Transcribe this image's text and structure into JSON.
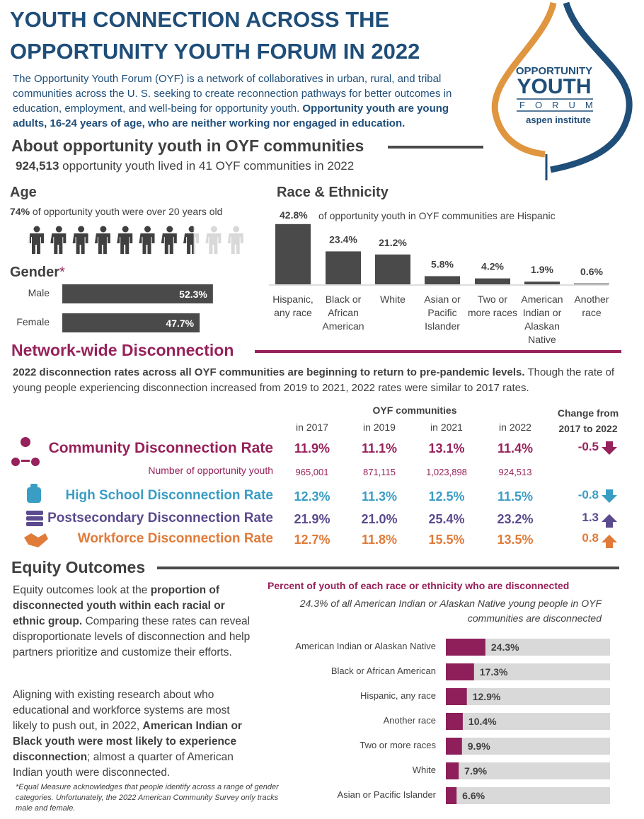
{
  "header": {
    "title_line1": "YOUTH CONNECTION ACROSS THE",
    "title_line2": "OPPORTUNITY YOUTH FORUM IN 2022",
    "intro": [
      {
        "text": "The Opportunity Youth Forum (OYF) is a network of collaboratives in urban, rural, and tribal communities across the U. S. seeking to create reconnection pathways for better outcomes in education, employment, and well-being for opportunity youth. ",
        "bold": false
      },
      {
        "text": "Opportunity youth are young adults, 16-24 years of age, who are neither working nor engaged in education.",
        "bold": true
      }
    ]
  },
  "logo": {
    "line1": "OPPORTUNITY",
    "line2": "YOUTH",
    "line3": "FORUM",
    "line4": "aspen institute"
  },
  "about": {
    "heading": "About opportunity youth in OYF communities",
    "parts": [
      {
        "text": "924,513",
        "bold": true
      },
      {
        "text": " opportunity youth lived in 41 OYF communities in 2022",
        "bold": false
      }
    ]
  },
  "age": {
    "heading": "Age",
    "parts": [
      {
        "text": "74%",
        "bold": true
      },
      {
        "text": " of opportunity youth were over 20 years old",
        "bold": false
      }
    ],
    "value": 74
  },
  "gender": {
    "heading": "Gender",
    "asterisk": "*",
    "categories": [
      "Male",
      "Female"
    ],
    "values": [
      52.3,
      47.7
    ],
    "value_labels": [
      "52.3%",
      "47.7%"
    ],
    "color": "#4a4a4a"
  },
  "race": {
    "heading": "Race & Ethnicity",
    "note": "of opportunity youth in OYF communities are Hispanic",
    "categories": [
      "Hispanic, any race",
      "Black or African American",
      "White",
      "Asian or Pacific Islander",
      "Two or more races",
      "American Indian or Alaskan Native",
      "Another race"
    ],
    "values": [
      42.8,
      23.4,
      21.2,
      5.8,
      4.2,
      1.9,
      0.6
    ],
    "value_labels": [
      "42.8%",
      "23.4%",
      "21.2%",
      "5.8%",
      "4.2%",
      "1.9%",
      "0.6%"
    ],
    "color": "#4a4a4a"
  },
  "network": {
    "heading": "Network-wide Disconnection",
    "lead": [
      {
        "text": "2022 disconnection rates across all OYF communities are beginning to return to pre-pandemic levels.",
        "bold": true
      },
      {
        "text": " Though the rate of young people experiencing disconnection increased from 2019 to 2021, 2022 rates were similar to 2017 rates.",
        "bold": false
      }
    ],
    "table": {
      "group_header": "OYF communities",
      "columns": [
        "in 2017",
        "in 2019",
        "in 2021",
        "in 2022"
      ],
      "change_header": "Change from 2017 to 2022",
      "rows": [
        {
          "label": "Community Disconnection Rate",
          "values": [
            "11.9%",
            "11.1%",
            "13.1%",
            "11.4%"
          ],
          "change": "-0.5",
          "color": "#97215a"
        },
        {
          "label": "Number of opportunity youth",
          "values": [
            "965,001",
            "871,115",
            "1,023,898",
            "924,513"
          ],
          "color": "#97215a"
        },
        {
          "label": "High School Disconnection Rate",
          "values": [
            "12.3%",
            "11.3%",
            "12.5%",
            "11.5%"
          ],
          "change": "-0.8",
          "color": "#3a9dc4"
        },
        {
          "label": "Postsecondary Disconnection Rate",
          "values": [
            "21.9%",
            "21.0%",
            "25.4%",
            "23.2%"
          ],
          "change": "1.3",
          "color": "#5b4a8e"
        },
        {
          "label": "Workforce Disconnection Rate",
          "values": [
            "12.7%",
            "11.8%",
            "15.5%",
            "13.5%"
          ],
          "change": "0.8",
          "color": "#e07b39"
        }
      ]
    }
  },
  "equity": {
    "heading": "Equity Outcomes",
    "para1": [
      {
        "text": "Equity outcomes look at the ",
        "bold": false
      },
      {
        "text": "proportion of disconnected youth within each racial or ethnic group.",
        "bold": true
      },
      {
        "text": " Comparing these rates can reveal disproportionate levels of disconnection and help partners prioritize and customize their efforts.",
        "bold": false
      }
    ],
    "para2": [
      {
        "text": "Aligning with existing research about who educational and workforce systems are most likely to push out, in 2022, ",
        "bold": false
      },
      {
        "text": "American Indian or Black youth were most likely to experience disconnection",
        "bold": true
      },
      {
        "text": "; almost a quarter of American Indian youth were disconnected.",
        "bold": false
      }
    ],
    "footnote": "*Equal Measure acknowledges that people identify across a range of gender categories. Unfortunately, the 2022 American Community Survey only tracks male and female.",
    "chart_title": "Percent of youth of each race or ethnicity who are disconnected",
    "chart_note": "24.3% of all American Indian or Alaskan Native young people in OYF communities are disconnected",
    "categories": [
      "American Indian or Alaskan Native",
      "Black or African American",
      "Hispanic, any race",
      "Another race",
      "Two or more races",
      "White",
      "Asian or Pacific Islander"
    ],
    "values": [
      24.3,
      17.3,
      12.9,
      10.4,
      9.9,
      7.9,
      6.6
    ],
    "value_labels": [
      "24.3%",
      "17.3%",
      "12.9%",
      "10.4%",
      "9.9%",
      "7.9%",
      "6.6%"
    ],
    "color": "#8e1f5a"
  }
}
